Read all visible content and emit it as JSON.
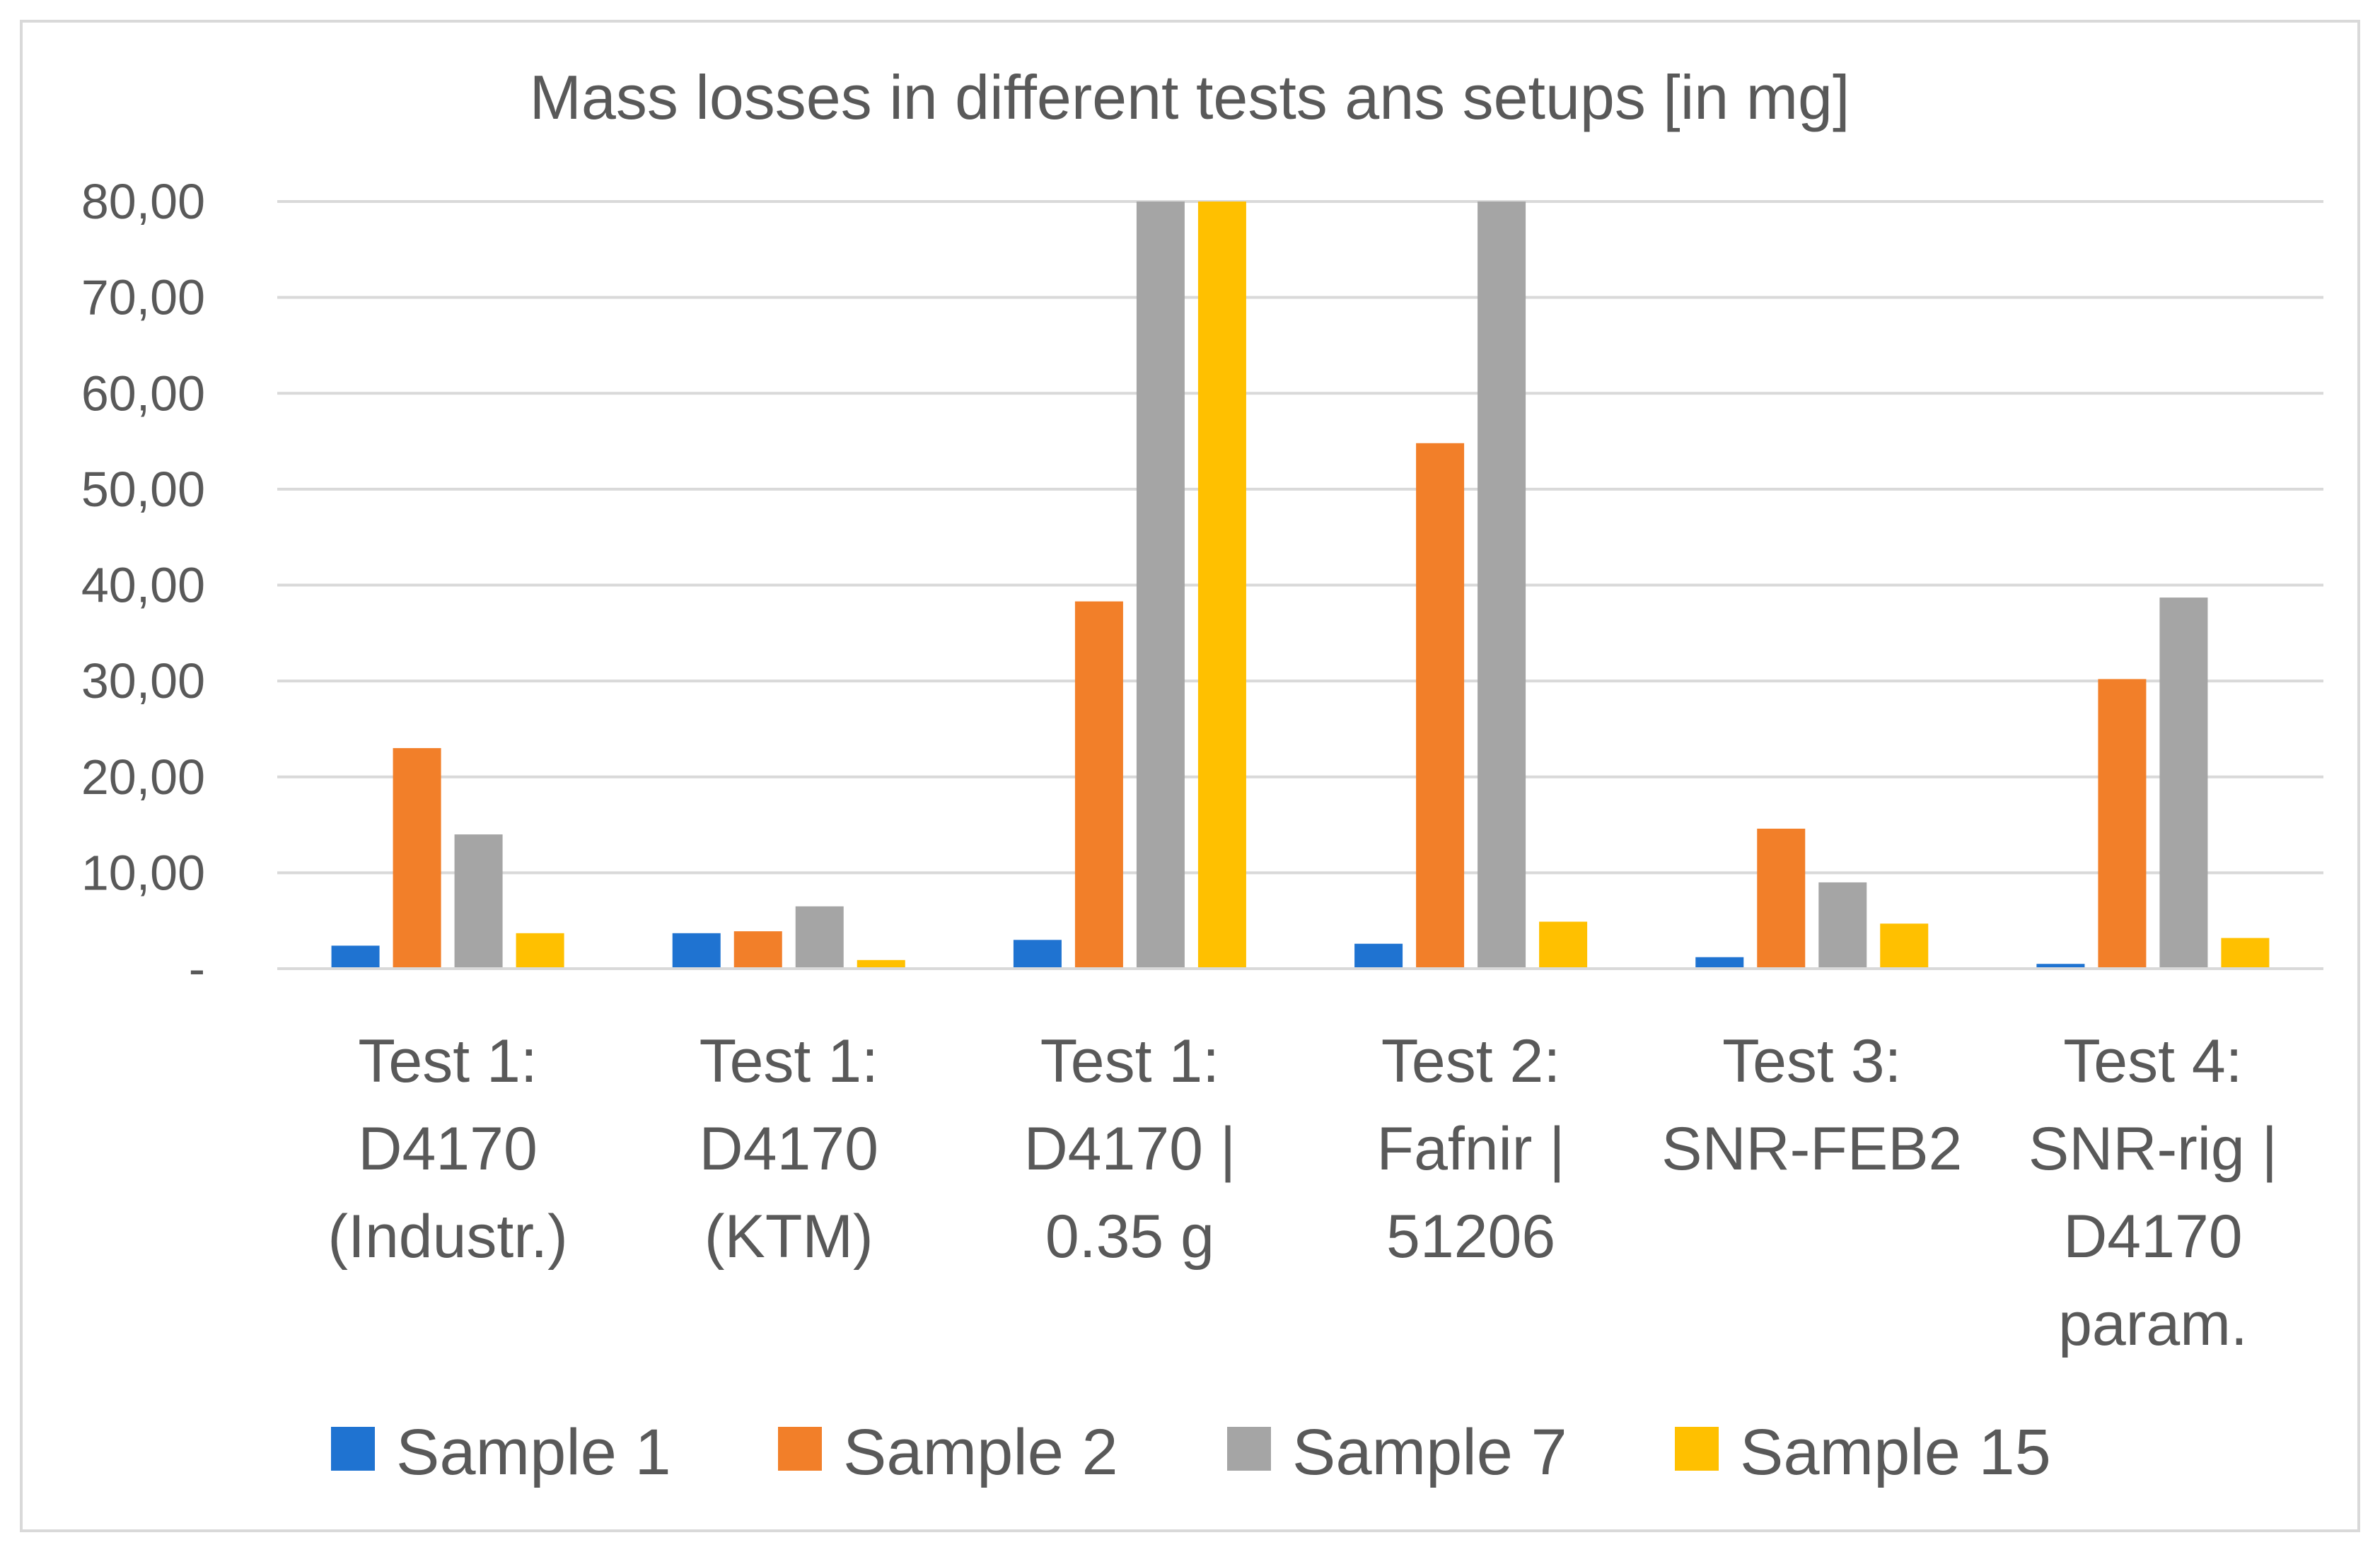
{
  "chart_data": {
    "type": "bar",
    "title": "Mass losses in different tests ans setups [in mg]",
    "xlabel": "",
    "ylabel": "",
    "ylim": [
      0,
      80
    ],
    "yticks": [
      {
        "value": 0,
        "label": "-"
      },
      {
        "value": 10,
        "label": "10,00"
      },
      {
        "value": 20,
        "label": "20,00"
      },
      {
        "value": 30,
        "label": "30,00"
      },
      {
        "value": 40,
        "label": "40,00"
      },
      {
        "value": 50,
        "label": "50,00"
      },
      {
        "value": 60,
        "label": "60,00"
      },
      {
        "value": 70,
        "label": "70,00"
      },
      {
        "value": 80,
        "label": "80,00"
      }
    ],
    "grid": true,
    "legend_position": "bottom",
    "categories": [
      [
        "Test 1:",
        "D4170",
        "(Industr.)"
      ],
      [
        "Test 1:",
        "D4170",
        "(KTM)"
      ],
      [
        "Test 1:",
        "D4170 |",
        "0.35 g"
      ],
      [
        "Test 2:",
        "Fafnir |",
        "51206"
      ],
      [
        "Test 3:",
        "SNR-FEB2"
      ],
      [
        "Test 4:",
        "SNR-rig |",
        "D4170",
        "param."
      ]
    ],
    "series": [
      {
        "name": "Sample 1",
        "color": "#1f73d1",
        "values": [
          2.4,
          3.7,
          3.0,
          2.6,
          1.2,
          0.5
        ]
      },
      {
        "name": "Sample 2",
        "color": "#f27f29",
        "values": [
          23.0,
          3.9,
          38.3,
          54.8,
          14.6,
          30.2
        ]
      },
      {
        "name": "Sample 7",
        "color": "#a5a5a5",
        "values": [
          14.0,
          6.5,
          80.0,
          80.0,
          9.0,
          38.7
        ]
      },
      {
        "name": "Sample 15",
        "color": "#ffc000",
        "values": [
          3.7,
          0.9,
          80.0,
          4.9,
          4.7,
          3.2
        ]
      }
    ]
  }
}
